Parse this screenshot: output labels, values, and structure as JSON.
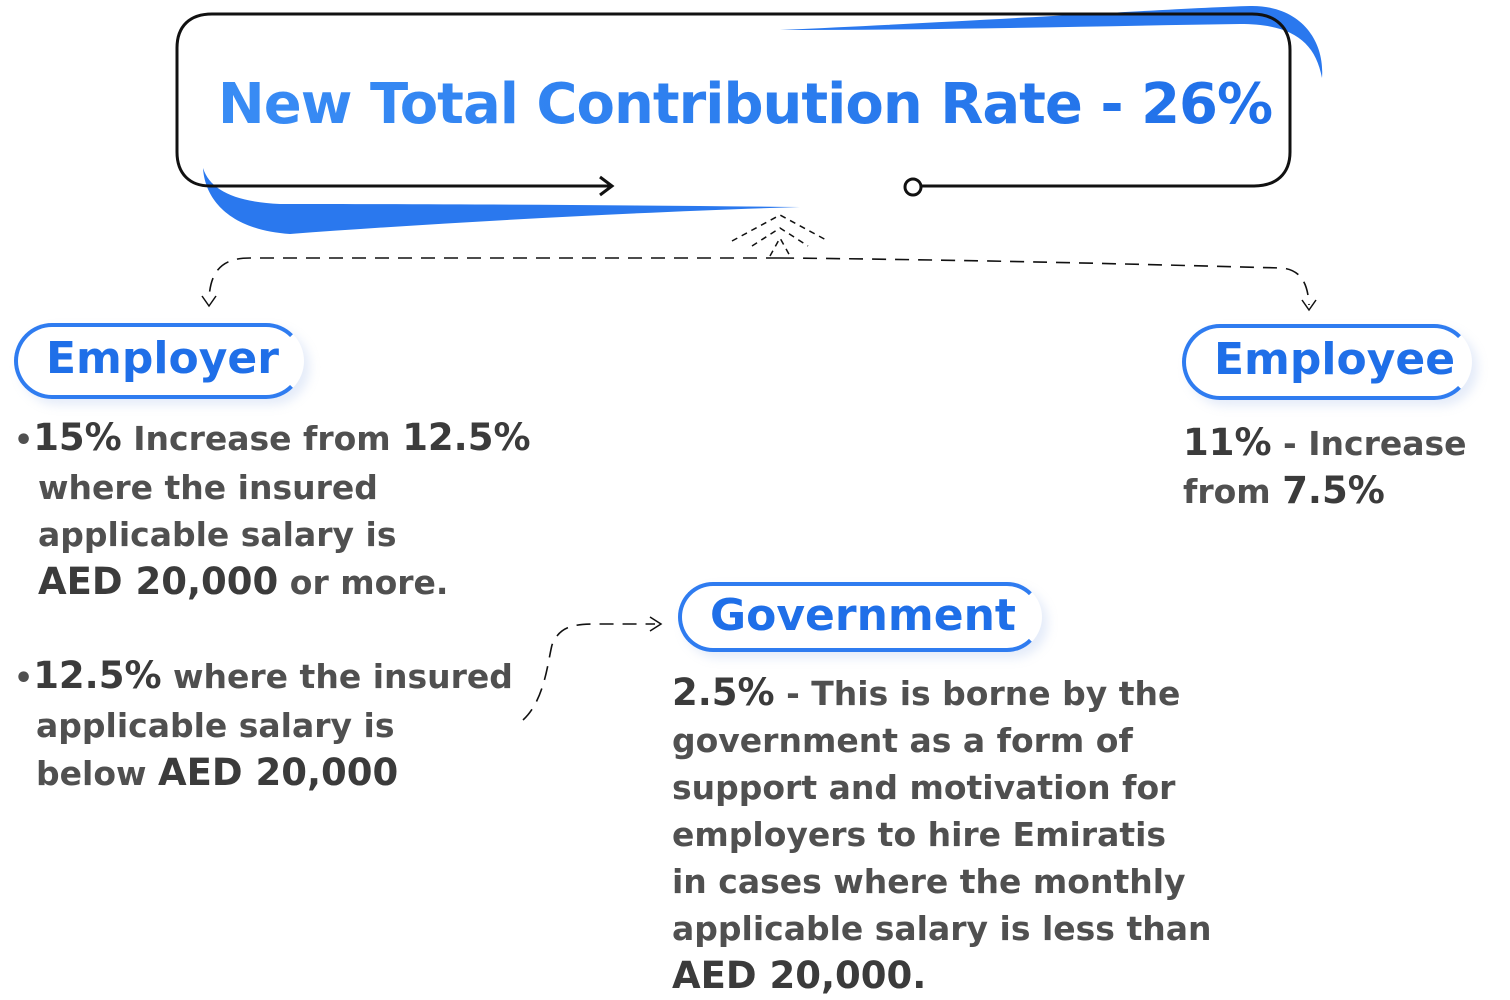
{
  "title": "New Total Contribution Rate - 26%",
  "accent_color": "#2979ee",
  "employer": {
    "label": "Employer",
    "item1": {
      "bullet": "•",
      "rate": "15%",
      "t1": " Increase from ",
      "from": "12.5%",
      "line2": "where the insured",
      "line3": "applicable salary is",
      "amount": "AED 20,000",
      "t4": " or more."
    },
    "item2": {
      "bullet": "•",
      "rate": "12.5%",
      "t1": " where the insured",
      "line2": "applicable salary is",
      "t3": "below ",
      "amount": "AED 20,000"
    }
  },
  "employee": {
    "label": "Employee",
    "rate": "11%",
    "t1": " - Increase",
    "t2": "from ",
    "from": "7.5%"
  },
  "government": {
    "label": "Government",
    "rate": "2.5%",
    "t1": " - This is borne by the",
    "line2": "government as a form of",
    "line3": "support and motivation for",
    "line4": "employers to hire Emiratis",
    "line5": "in cases where the monthly",
    "line6": "applicable salary is less than",
    "amount": "AED 20,000."
  }
}
